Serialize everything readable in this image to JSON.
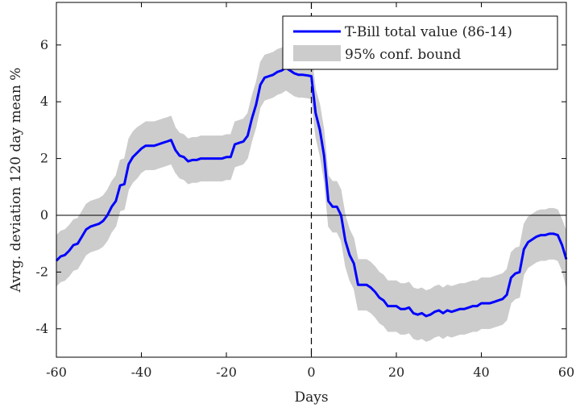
{
  "chart_data": {
    "type": "line",
    "xlabel": "Days",
    "ylabel": "Avrg. deviation 120 day mean %",
    "xlim": [
      -60,
      60
    ],
    "ylim": [
      -5,
      7.5
    ],
    "xticks": [
      -60,
      -40,
      -20,
      0,
      20,
      40,
      60
    ],
    "yticks": [
      -4,
      -2,
      0,
      2,
      4,
      6
    ],
    "xtick_labels": [
      "-60",
      "-40",
      "-20",
      "0",
      "20",
      "40",
      "60"
    ],
    "ytick_labels": [
      "-4",
      "-2",
      "0",
      "2",
      "4",
      "6"
    ],
    "grid": false,
    "legend_position": "top-right",
    "reference_lines": [
      {
        "orientation": "horizontal",
        "value": 0,
        "style": "solid"
      },
      {
        "orientation": "vertical",
        "value": 0,
        "style": "dashed"
      }
    ],
    "series": [
      {
        "name": "T-Bill total value (86-14)",
        "color": "#0000ff",
        "x": [
          -60,
          -59,
          -58,
          -57,
          -56,
          -55,
          -54,
          -53,
          -52,
          -51,
          -50,
          -49,
          -48,
          -47,
          -46,
          -45,
          -44,
          -43,
          -42,
          -41,
          -40,
          -39,
          -38,
          -37,
          -36,
          -35,
          -34,
          -33,
          -32,
          -31,
          -30,
          -29,
          -28,
          -27,
          -26,
          -25,
          -24,
          -23,
          -22,
          -21,
          -20,
          -19,
          -18,
          -17,
          -16,
          -15,
          -14,
          -13,
          -12,
          -11,
          -10,
          -9,
          -8,
          -7,
          -6,
          -5,
          -4,
          -3,
          -2,
          -1,
          0,
          1,
          2,
          3,
          4,
          5,
          6,
          7,
          8,
          9,
          10,
          11,
          12,
          13,
          14,
          15,
          16,
          17,
          18,
          19,
          20,
          21,
          22,
          23,
          24,
          25,
          26,
          27,
          28,
          29,
          30,
          31,
          32,
          33,
          34,
          35,
          36,
          37,
          38,
          39,
          40,
          41,
          42,
          43,
          44,
          45,
          46,
          47,
          48,
          49,
          50,
          51,
          52,
          53,
          54,
          55,
          56,
          57,
          58,
          59,
          60
        ],
        "y": [
          -1.6,
          -1.45,
          -1.4,
          -1.25,
          -1.05,
          -1.0,
          -0.75,
          -0.5,
          -0.4,
          -0.35,
          -0.3,
          -0.2,
          0.0,
          0.3,
          0.5,
          1.05,
          1.1,
          1.8,
          2.05,
          2.2,
          2.35,
          2.45,
          2.45,
          2.45,
          2.5,
          2.55,
          2.6,
          2.65,
          2.3,
          2.1,
          2.05,
          1.9,
          1.95,
          1.95,
          2.0,
          2.0,
          2.0,
          2.0,
          2.0,
          2.0,
          2.05,
          2.05,
          2.5,
          2.55,
          2.6,
          2.8,
          3.4,
          3.9,
          4.6,
          4.85,
          4.9,
          4.95,
          5.05,
          5.1,
          5.2,
          5.1,
          5.0,
          4.95,
          4.95,
          4.93,
          4.9,
          3.6,
          3.0,
          2.1,
          0.5,
          0.3,
          0.3,
          0.0,
          -0.9,
          -1.4,
          -1.7,
          -2.45,
          -2.45,
          -2.45,
          -2.55,
          -2.7,
          -2.9,
          -3.0,
          -3.2,
          -3.2,
          -3.2,
          -3.3,
          -3.3,
          -3.25,
          -3.45,
          -3.5,
          -3.45,
          -3.55,
          -3.5,
          -3.4,
          -3.35,
          -3.45,
          -3.35,
          -3.4,
          -3.35,
          -3.3,
          -3.3,
          -3.25,
          -3.2,
          -3.2,
          -3.1,
          -3.1,
          -3.1,
          -3.05,
          -3.0,
          -2.95,
          -2.8,
          -2.2,
          -2.05,
          -2.0,
          -1.2,
          -0.95,
          -0.85,
          -0.75,
          -0.7,
          -0.7,
          -0.65,
          -0.65,
          -0.7,
          -1.05,
          -1.55
        ]
      },
      {
        "name": "95% conf. bound",
        "type": "band",
        "color": "#cccccc",
        "half_width": [
          0.9,
          0.9,
          0.9,
          0.9,
          0.9,
          0.9,
          0.9,
          0.9,
          0.9,
          0.9,
          0.9,
          0.9,
          0.9,
          0.9,
          0.9,
          0.9,
          0.9,
          0.9,
          0.9,
          0.9,
          0.85,
          0.85,
          0.85,
          0.85,
          0.85,
          0.85,
          0.85,
          0.85,
          0.8,
          0.8,
          0.8,
          0.8,
          0.8,
          0.8,
          0.8,
          0.8,
          0.8,
          0.8,
          0.8,
          0.8,
          0.8,
          0.8,
          0.8,
          0.8,
          0.8,
          0.8,
          0.8,
          0.8,
          0.8,
          0.8,
          0.8,
          0.8,
          0.8,
          0.8,
          0.8,
          0.8,
          0.8,
          0.8,
          0.8,
          0.8,
          0.8,
          0.85,
          0.9,
          0.9,
          0.9,
          0.9,
          0.9,
          0.9,
          0.9,
          0.9,
          0.9,
          0.9,
          0.9,
          0.9,
          0.9,
          0.9,
          0.9,
          0.9,
          0.9,
          0.9,
          0.9,
          0.9,
          0.9,
          0.9,
          0.9,
          0.9,
          0.9,
          0.9,
          0.9,
          0.9,
          0.9,
          0.9,
          0.9,
          0.9,
          0.9,
          0.9,
          0.9,
          0.9,
          0.9,
          0.9,
          0.9,
          0.9,
          0.9,
          0.9,
          0.9,
          0.9,
          0.9,
          0.9,
          0.9,
          0.9,
          0.9,
          0.9,
          0.9,
          0.9,
          0.9,
          0.9,
          0.9,
          0.9,
          0.9,
          0.9,
          1.0
        ]
      }
    ]
  }
}
